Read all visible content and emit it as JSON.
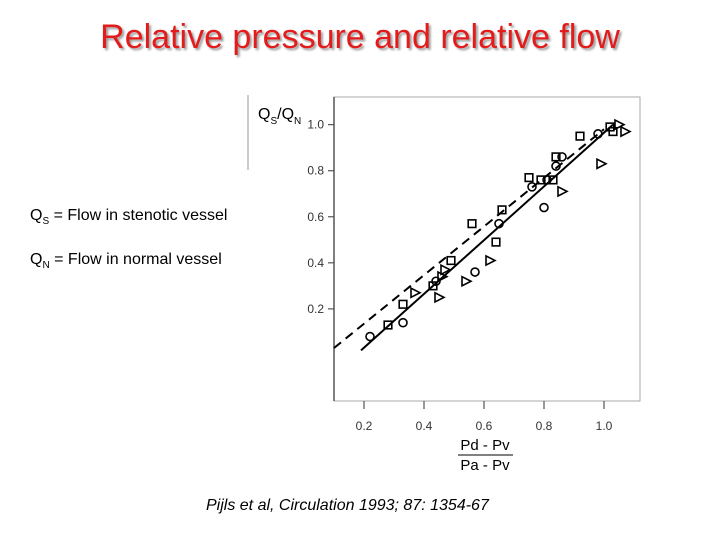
{
  "title": "Relative pressure and relative flow",
  "definitions": {
    "qs": {
      "symbol": "Q",
      "subscript": "S",
      "text": " = Flow in stenotic vessel"
    },
    "qn": {
      "symbol": "Q",
      "subscript": "N",
      "text": " = Flow in normal vessel"
    }
  },
  "citation": "Pijls et al, Circulation 1993; 87: 1354-67",
  "chart_data": {
    "type": "scatter",
    "ylabel": {
      "base1": "Q",
      "sub1": "S",
      "sep": "/",
      "base2": "Q",
      "sub2": "N"
    },
    "xlabel": {
      "numerator": "Pd - Pv",
      "denominator": "Pa - Pv"
    },
    "xlim": [
      0.1,
      1.12
    ],
    "ylim": [
      -0.2,
      1.12
    ],
    "x_ticks": [
      "0.2",
      "0.4",
      "0.6",
      "0.8",
      "1.0"
    ],
    "y_ticks": [
      "0.2",
      "0.4",
      "0.6",
      "0.8",
      "1.0"
    ],
    "grid": false,
    "series": [
      {
        "marker": "circle",
        "points": [
          [
            0.22,
            0.08
          ],
          [
            0.33,
            0.14
          ],
          [
            0.44,
            0.32
          ],
          [
            0.57,
            0.36
          ],
          [
            0.65,
            0.57
          ],
          [
            0.76,
            0.73
          ],
          [
            0.8,
            0.64
          ],
          [
            0.81,
            0.76
          ],
          [
            0.84,
            0.82
          ],
          [
            0.86,
            0.86
          ],
          [
            0.98,
            0.96
          ]
        ]
      },
      {
        "marker": "square",
        "points": [
          [
            0.28,
            0.13
          ],
          [
            0.33,
            0.22
          ],
          [
            0.43,
            0.3
          ],
          [
            0.49,
            0.41
          ],
          [
            0.56,
            0.57
          ],
          [
            0.64,
            0.49
          ],
          [
            0.66,
            0.63
          ],
          [
            0.75,
            0.77
          ],
          [
            0.79,
            0.76
          ],
          [
            0.83,
            0.76
          ],
          [
            0.84,
            0.86
          ],
          [
            0.92,
            0.95
          ],
          [
            1.02,
            0.99
          ],
          [
            1.03,
            0.97
          ]
        ]
      },
      {
        "marker": "triangle",
        "points": [
          [
            0.37,
            0.27
          ],
          [
            0.45,
            0.25
          ],
          [
            0.46,
            0.34
          ],
          [
            0.47,
            0.37
          ],
          [
            0.54,
            0.32
          ],
          [
            0.62,
            0.41
          ],
          [
            0.86,
            0.71
          ],
          [
            0.99,
            0.83
          ],
          [
            1.05,
            1.0
          ],
          [
            1.07,
            0.97
          ]
        ]
      }
    ],
    "lines": [
      {
        "style": "solid",
        "from": [
          0.19,
          0.02
        ],
        "to": [
          1.03,
          1.0
        ]
      },
      {
        "style": "dashed",
        "from": [
          0.1,
          0.03
        ],
        "to": [
          1.0,
          0.98
        ]
      }
    ]
  }
}
